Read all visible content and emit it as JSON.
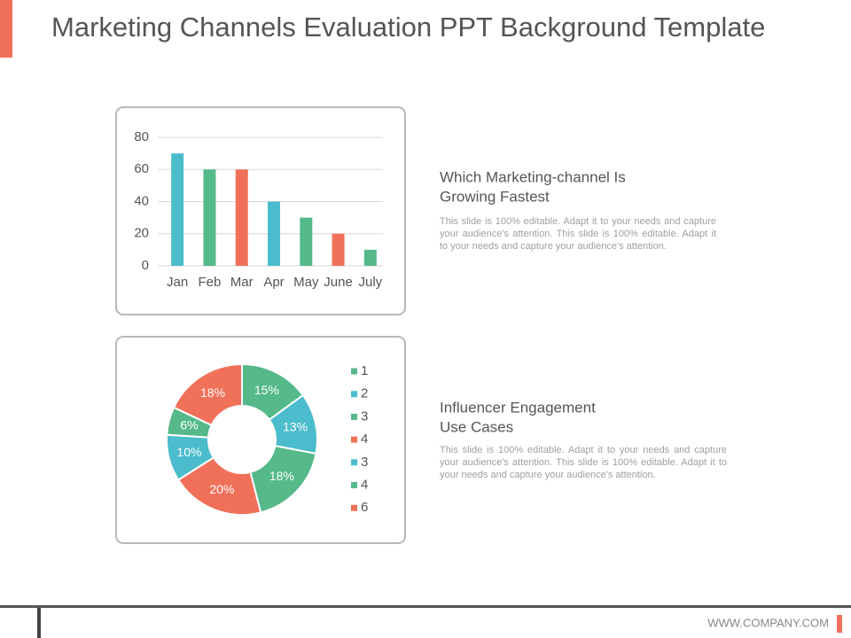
{
  "header": {
    "title": "Marketing Channels Evaluation PPT Background Template"
  },
  "chart_data": [
    {
      "type": "bar",
      "categories": [
        "Jan",
        "Feb",
        "Mar",
        "Apr",
        "May",
        "June",
        "July"
      ],
      "values": [
        70,
        60,
        60,
        40,
        30,
        20,
        10
      ],
      "colors": [
        "#4bbccc",
        "#55b98a",
        "#f0705a",
        "#4bbccc",
        "#55b98a",
        "#f0705a",
        "#55b98a"
      ],
      "ylim": [
        0,
        80
      ],
      "yticks": [
        0,
        20,
        40,
        60,
        80
      ],
      "grid": true
    },
    {
      "type": "donut",
      "categories": [
        "1",
        "2",
        "3",
        "4",
        "3",
        "4",
        "6"
      ],
      "values": [
        15,
        13,
        18,
        20,
        10,
        6,
        18
      ],
      "value_labels": [
        "15%",
        "13%",
        "18%",
        "20%",
        "10%",
        "6%",
        "18%"
      ],
      "colors": [
        "#55b98a",
        "#4bbccc",
        "#55b98a",
        "#f0705a",
        "#4bbccc",
        "#55b98a",
        "#f0705a"
      ],
      "legend": "right"
    }
  ],
  "sections": [
    {
      "title_lines": [
        "Which Marketing-channel Is",
        "Growing Fastest"
      ],
      "body": "This slide is 100% editable. Adapt it to your needs and capture your audience's attention. This slide is 100% editable. Adapt it to your needs and capture your audience's attention."
    },
    {
      "title_lines": [
        "Influencer Engagement",
        "Use Cases"
      ],
      "body": "This slide is 100% editable. Adapt it to your needs and capture your audience's attention. This slide is 100% editable. Adapt it to your needs and capture your audience's attention."
    }
  ],
  "footer": {
    "url": "WWW.COMPANY.COM"
  }
}
